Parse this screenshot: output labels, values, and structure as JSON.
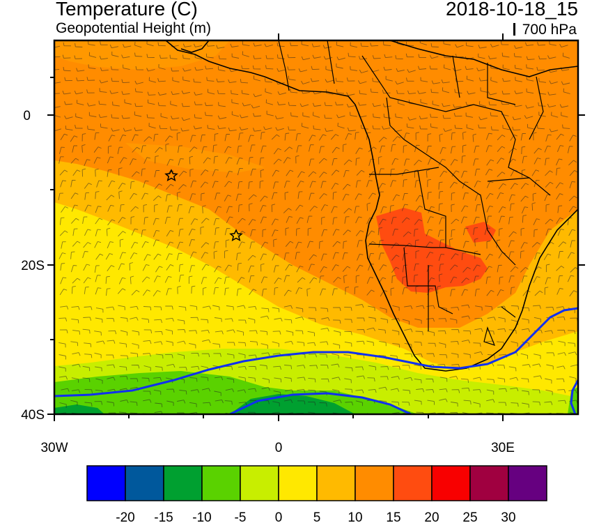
{
  "header": {
    "title": "Temperature (C)",
    "subtitle": "Geopotential Height (m)",
    "datetime": "2018-10-18_15",
    "level": "700 hPa"
  },
  "map": {
    "lat_labels": [
      "0",
      "20S",
      "40S"
    ],
    "lon_labels": [
      "30W",
      "0",
      "30E"
    ]
  },
  "colorbar": {
    "colors": [
      "#0000ff",
      "#00589c",
      "#00a030",
      "#5ad200",
      "#c8ee00",
      "#ffe800",
      "#ffba00",
      "#ff8c00",
      "#ff4c10",
      "#f80000",
      "#a00040",
      "#660080"
    ],
    "labels": [
      "-20",
      "-15",
      "-10",
      "-5",
      "0",
      "5",
      "10",
      "15",
      "20",
      "25",
      "30"
    ]
  },
  "contour_color": "#1030f0"
}
